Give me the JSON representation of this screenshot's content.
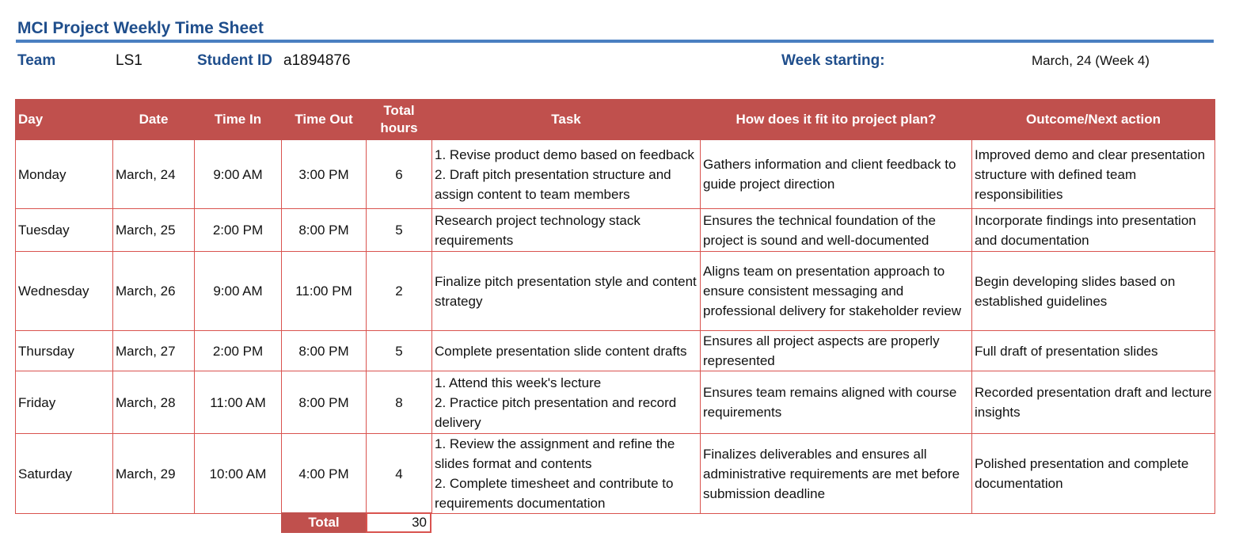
{
  "title": "MCI Project Weekly Time Sheet",
  "meta": {
    "team_label": "Team",
    "team_value": "LS1",
    "student_label": "Student ID",
    "student_value": "a1894876",
    "week_label": "Week starting:",
    "week_value": "March, 24 (Week 4)"
  },
  "columns": {
    "day": "Day",
    "date": "Date",
    "time_in": "Time In",
    "time_out": "Time Out",
    "total_hours_1": "Total",
    "total_hours_2": "hours",
    "task": "Task",
    "fit": "How does it fit ito project plan?",
    "outcome": "Outcome/Next action"
  },
  "rows": [
    {
      "day": "Monday",
      "date": "March, 24",
      "time_in": "9:00 AM",
      "time_out": "3:00 PM",
      "hours": "6",
      "task": [
        "1. Revise product demo based on feedback",
        "2. Draft pitch presentation structure and assign content to team members"
      ],
      "fit": "Gathers information and client feedback to guide project direction",
      "outcome": "Improved demo and clear presentation structure with defined team responsibilities"
    },
    {
      "day": "Tuesday",
      "date": "March, 25",
      "time_in": "2:00 PM",
      "time_out": "8:00 PM",
      "hours": "5",
      "task": [
        "Research project technology stack requirements"
      ],
      "fit": "Ensures the technical foundation of the project is sound and well-documented",
      "outcome": "Incorporate findings into presentation and documentation"
    },
    {
      "day": "Wednesday",
      "date": "March, 26",
      "time_in": "9:00 AM",
      "time_out": "11:00 PM",
      "hours": "2",
      "task": [
        "Finalize pitch presentation style and content strategy"
      ],
      "fit": "Aligns team on presentation approach to ensure consistent messaging and professional delivery for stakeholder review",
      "outcome": "Begin developing slides based on established guidelines"
    },
    {
      "day": "Thursday",
      "date": "March, 27",
      "time_in": "2:00 PM",
      "time_out": "8:00 PM",
      "hours": "5",
      "task": [
        "Complete presentation slide content drafts"
      ],
      "fit": "Ensures all project aspects are properly represented",
      "outcome": "Full draft of presentation slides"
    },
    {
      "day": "Friday",
      "date": "March, 28",
      "time_in": "11:00 AM",
      "time_out": "8:00 PM",
      "hours": "8",
      "task": [
        "1. Attend this week's lecture",
        "2. Practice pitch presentation and record delivery"
      ],
      "fit": "Ensures team remains aligned with course requirements",
      "outcome": "Recorded presentation draft and lecture insights"
    },
    {
      "day": "Saturday",
      "date": "March, 29",
      "time_in": "10:00 AM",
      "time_out": "4:00 PM",
      "hours": "4",
      "task": [
        "1. Review the assignment and refine the slides format and contents",
        "2. Complete timesheet and contribute to requirements documentation"
      ],
      "fit": "Finalizes deliverables and ensures all administrative requirements are met before submission deadline",
      "outcome": "Polished presentation and complete documentation"
    }
  ],
  "total": {
    "label": "Total",
    "value": "30"
  }
}
